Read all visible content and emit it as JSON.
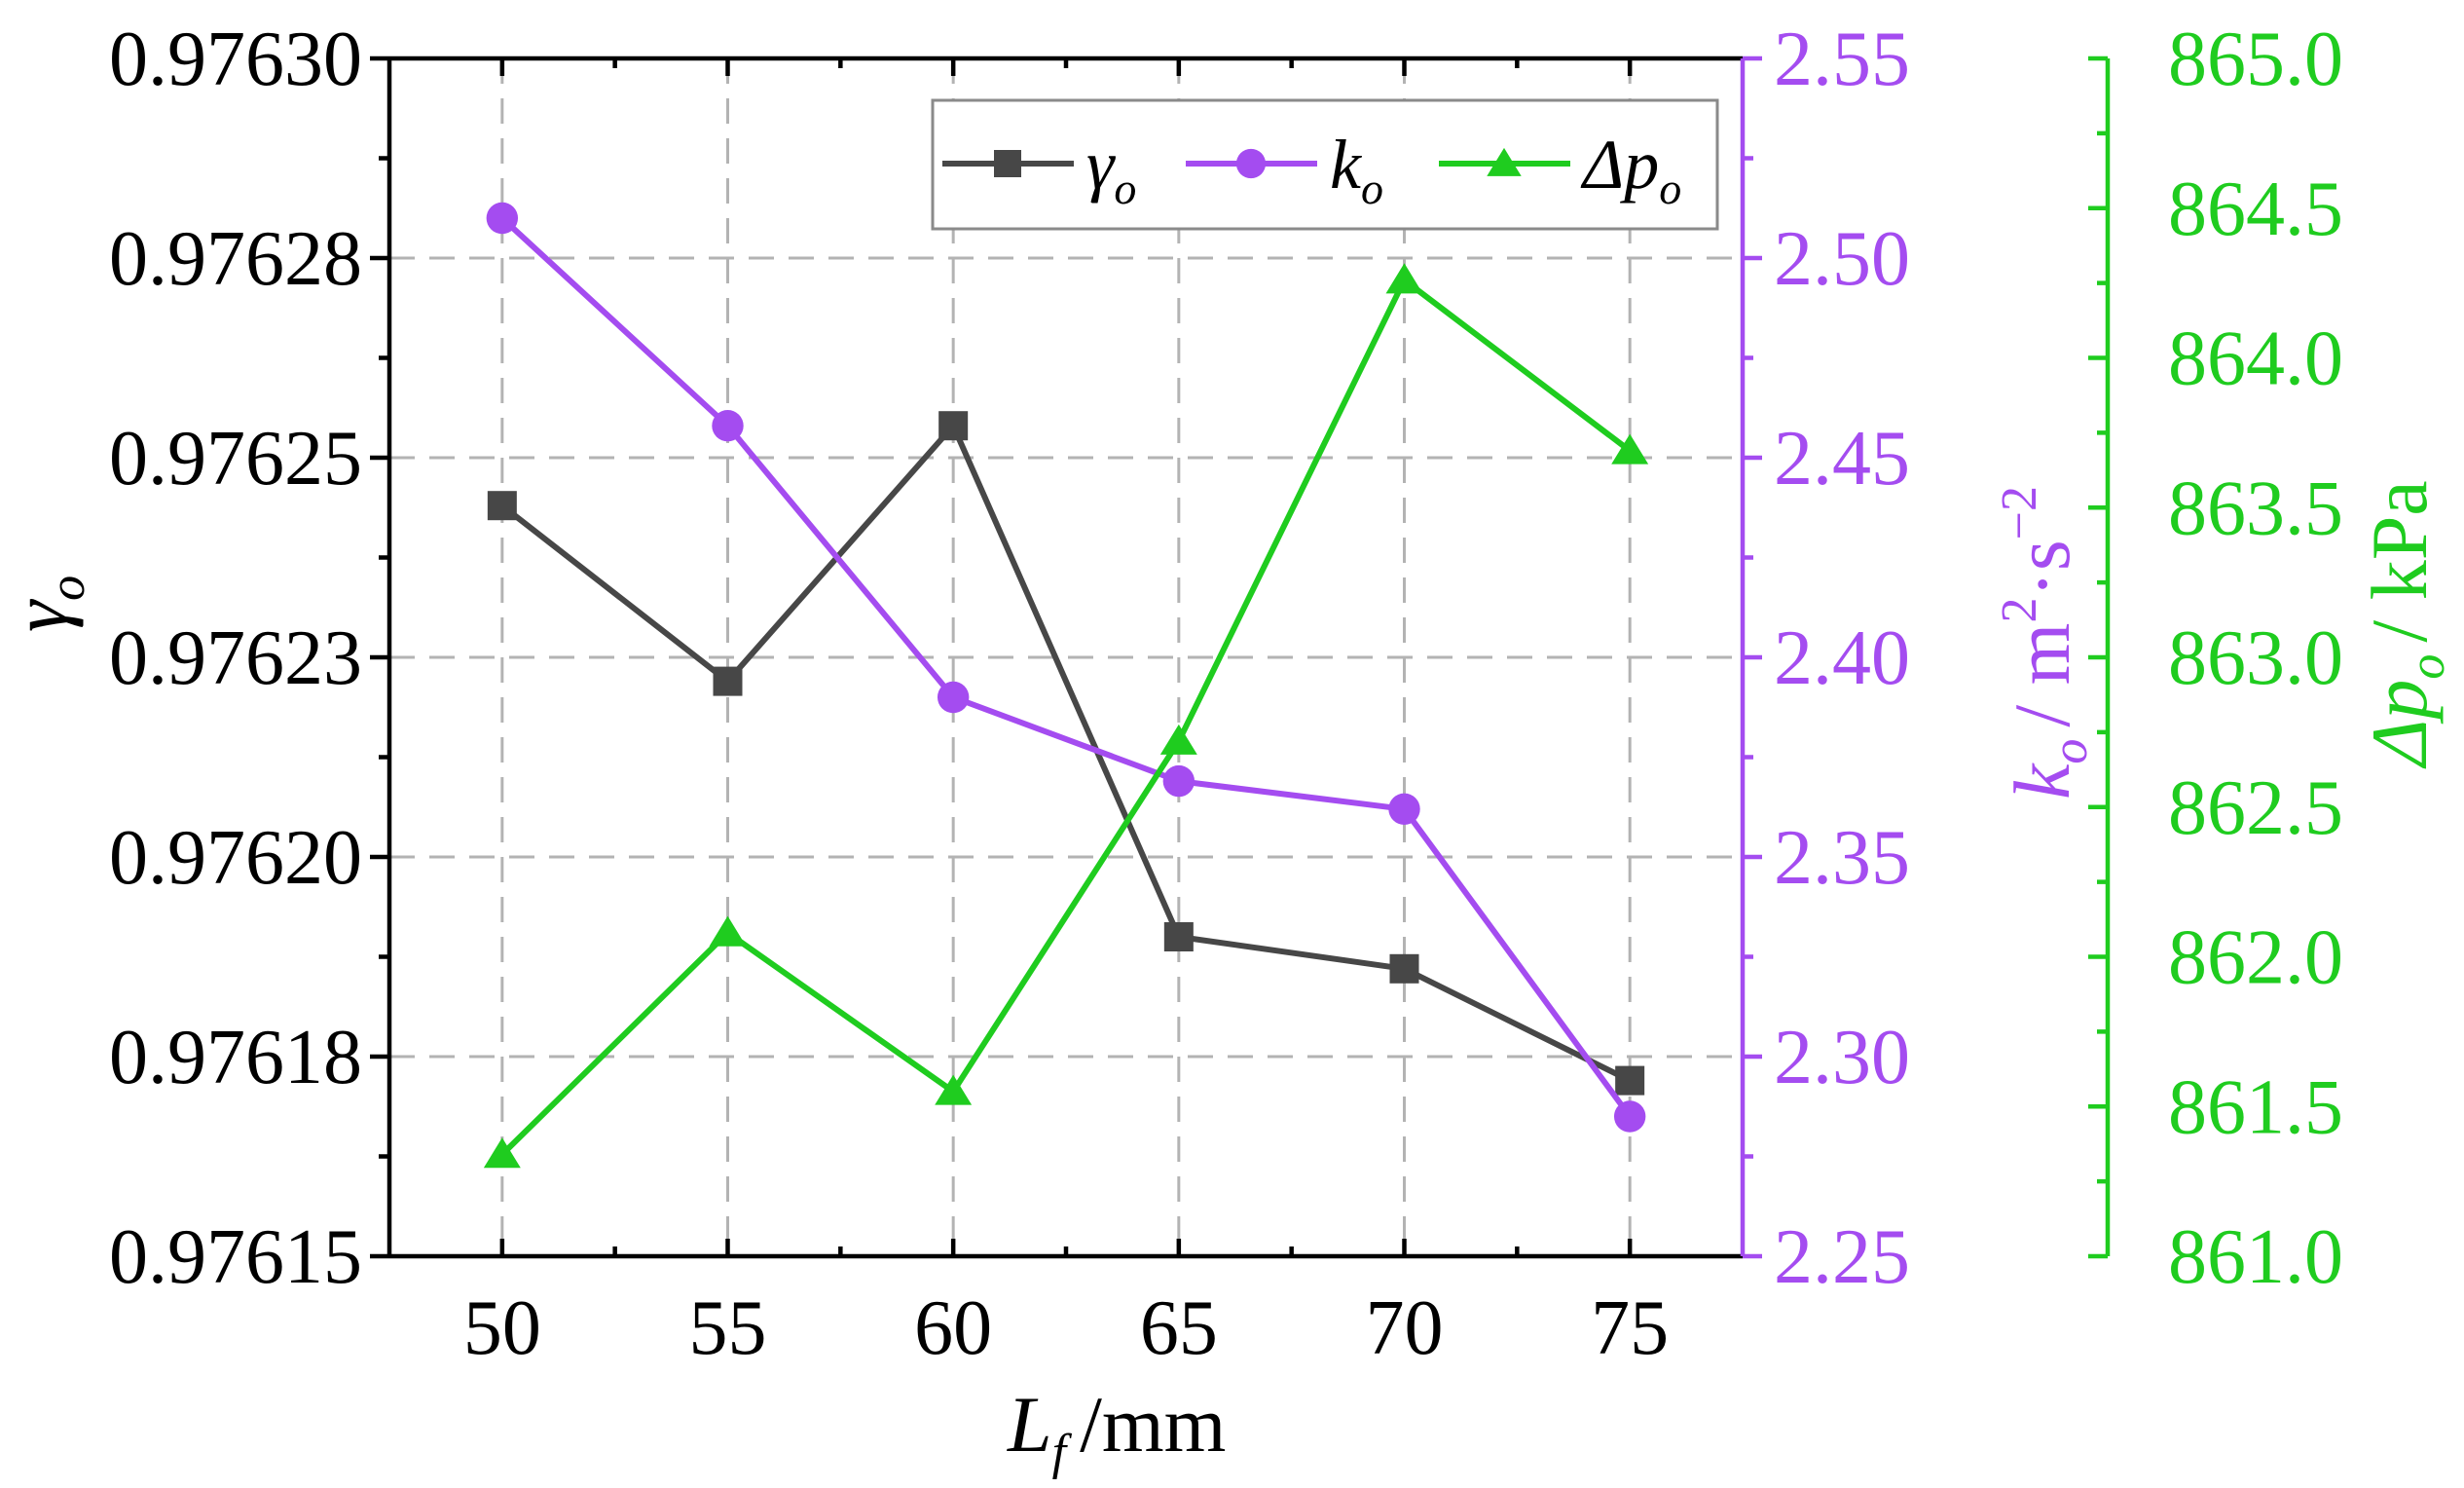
{
  "chart_data": {
    "type": "line",
    "x": [
      50,
      55,
      60,
      65,
      70,
      75
    ],
    "xlabel": "/mm",
    "xlabel_symbol": {
      "base": "L",
      "sub": "f"
    },
    "xlim": [
      47.5,
      77.5
    ],
    "x_ticks": [
      "50",
      "55",
      "60",
      "65",
      "70",
      "75"
    ],
    "axes": {
      "left": {
        "label_symbol": {
          "base": "γ",
          "sub": "o"
        },
        "ylim": [
          0.97615,
          0.9763
        ],
        "ticks": [
          "0.97615",
          "0.97618",
          "0.97620",
          "0.97623",
          "0.97625",
          "0.97628",
          "0.97630"
        ],
        "color": "#000000"
      },
      "right1": {
        "label_symbol": {
          "base": "k",
          "sub": "o"
        },
        "label_unit": "/ m",
        "label_sup1": "2",
        "label_dot": "·",
        "label_s": "s",
        "label_sup2": "−2",
        "ylim": [
          2.25,
          2.55
        ],
        "ticks": [
          "2.25",
          "2.30",
          "2.35",
          "2.40",
          "2.45",
          "2.50",
          "2.55"
        ],
        "color": "#a44cf0"
      },
      "right2": {
        "label_symbol": {
          "base": "Δp",
          "sub": "o"
        },
        "label_unit": "/ kPa",
        "ylim": [
          861.0,
          865.0
        ],
        "ticks": [
          "861.0",
          "861.5",
          "862.0",
          "862.5",
          "863.0",
          "863.5",
          "864.0",
          "864.5",
          "865.0"
        ],
        "color": "#1fcc1f"
      }
    },
    "series": [
      {
        "name": "γo",
        "legend_base": "γ",
        "legend_sub": "o",
        "axis": "left",
        "marker": "square",
        "color": "#474747",
        "values": [
          0.976244,
          0.976222,
          0.976254,
          0.97619,
          0.976186,
          0.976172
        ]
      },
      {
        "name": "ko",
        "legend_base": "k",
        "legend_sub": "o",
        "axis": "right1",
        "marker": "circle",
        "color": "#a44cf0",
        "values": [
          2.51,
          2.458,
          2.39,
          2.369,
          2.362,
          2.285
        ]
      },
      {
        "name": "Δpo",
        "legend_base": "Δp",
        "legend_sub": "o",
        "axis": "right2",
        "marker": "triangle",
        "color": "#1fcc1f",
        "values": [
          861.34,
          862.08,
          861.55,
          862.72,
          864.26,
          863.69
        ]
      }
    ],
    "grid": true,
    "legend_position": "top-right"
  }
}
